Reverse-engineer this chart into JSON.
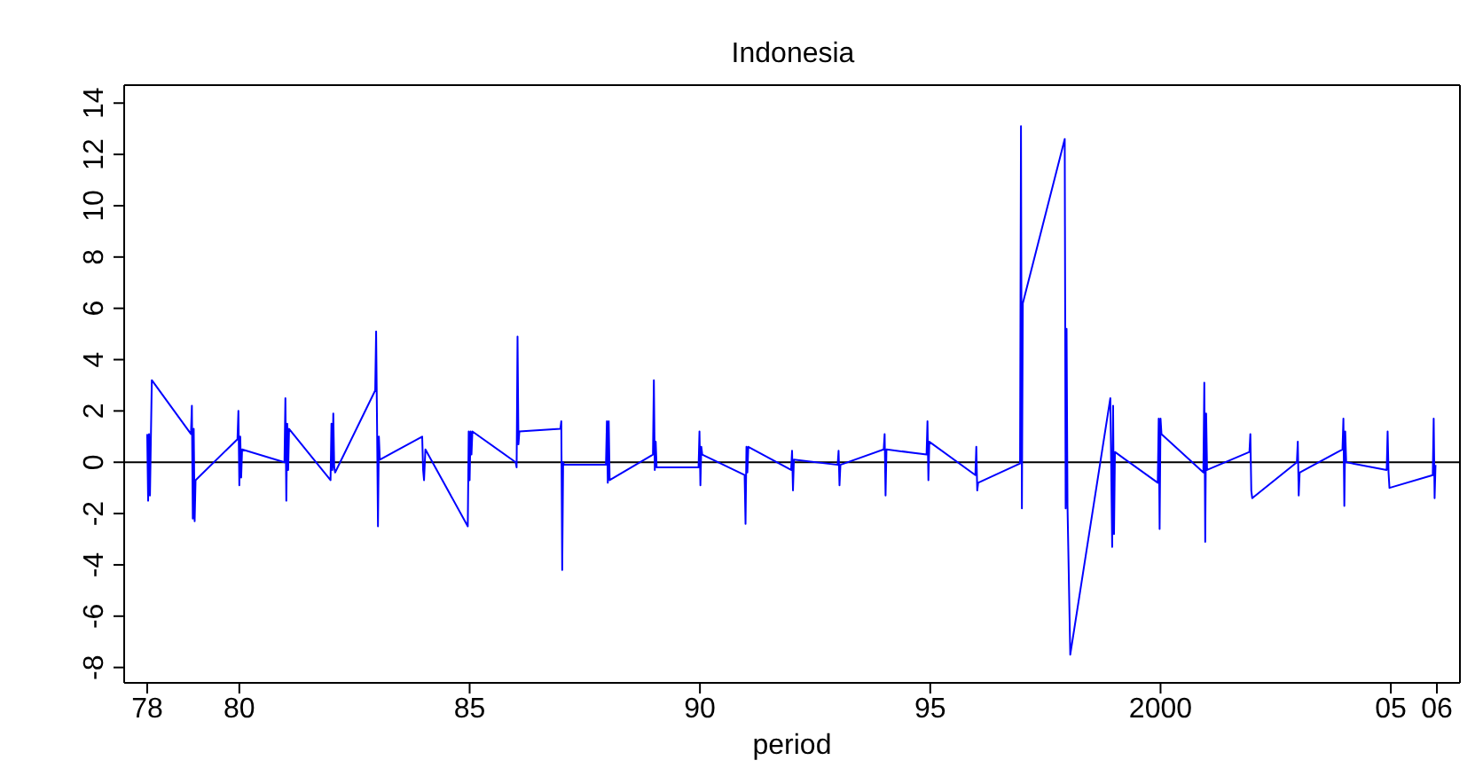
{
  "chart_data": {
    "type": "line",
    "title": "Indonesia",
    "xlabel": "period",
    "x": [
      1978.0,
      1978.02,
      1978.04,
      1978.06,
      1978.1,
      1978.95,
      1978.97,
      1978.99,
      1979.01,
      1979.03,
      1979.05,
      1979.96,
      1979.98,
      1980.0,
      1980.02,
      1980.04,
      1980.06,
      1980.98,
      1981.0,
      1981.02,
      1981.04,
      1981.06,
      1981.08,
      1981.98,
      1982.0,
      1982.02,
      1982.04,
      1982.06,
      1982.08,
      1982.95,
      1982.97,
      1982.99,
      1983.01,
      1983.03,
      1983.05,
      1983.97,
      1983.99,
      1984.01,
      1984.04,
      1984.96,
      1984.98,
      1985.0,
      1985.02,
      1985.04,
      1985.06,
      1986.0,
      1986.02,
      1986.04,
      1986.06,
      1986.08,
      1986.97,
      1986.99,
      1987.01,
      1987.03,
      1987.05,
      1987.96,
      1987.98,
      1988.0,
      1988.02,
      1988.04,
      1988.98,
      1989.0,
      1989.02,
      1989.04,
      1989.06,
      1989.97,
      1989.99,
      1990.01,
      1990.03,
      1990.05,
      1990.97,
      1990.99,
      1991.01,
      1991.03,
      1991.05,
      1991.98,
      1992.0,
      1992.02,
      1992.04,
      1992.99,
      1993.01,
      1993.03,
      1993.05,
      1993.99,
      1994.01,
      1994.03,
      1994.05,
      1994.92,
      1994.94,
      1994.96,
      1994.98,
      1995.98,
      1996.0,
      1996.02,
      1996.04,
      1996.95,
      1996.97,
      1996.99,
      1997.01,
      1997.92,
      1997.94,
      1997.96,
      1997.98,
      1998.04,
      1998.91,
      1998.93,
      1998.95,
      1998.97,
      1998.99,
      1999.01,
      1999.94,
      1999.96,
      1999.98,
      2000.0,
      2000.02,
      2000.93,
      2000.95,
      2000.97,
      2000.99,
      2001.01,
      2001.93,
      2001.95,
      2001.97,
      2001.99,
      2002.96,
      2002.98,
      2003.0,
      2003.02,
      2003.95,
      2003.97,
      2003.99,
      2004.01,
      2004.03,
      2004.91,
      2004.93,
      2004.95,
      2004.97,
      2005.91,
      2005.93,
      2005.95,
      2005.97
    ],
    "series": [
      {
        "color": "#0000ff",
        "values": [
          1.1,
          -1.5,
          1.1,
          -1.3,
          3.2,
          1.1,
          2.2,
          -2.2,
          1.3,
          -2.3,
          -0.7,
          0.9,
          2.0,
          -0.9,
          1.0,
          -0.6,
          0.5,
          0,
          2.5,
          -1.5,
          1.5,
          -0.3,
          1.3,
          -0.7,
          1.5,
          -0.3,
          1.9,
          -0.2,
          -0.4,
          2.8,
          5.1,
          1.5,
          -2.5,
          1.0,
          0.1,
          1.0,
          -0.3,
          -0.7,
          0.5,
          -2.5,
          1.2,
          -0.7,
          1.2,
          0.3,
          1.2,
          0,
          -0.2,
          4.9,
          0.7,
          1.2,
          1.3,
          1.6,
          -4.2,
          0,
          -0.1,
          -0.1,
          1.6,
          -0.8,
          1.6,
          -0.7,
          0.3,
          3.2,
          -0.3,
          0.8,
          -0.2,
          -0.2,
          1.2,
          -0.9,
          0.6,
          0.3,
          -0.5,
          -2.4,
          0.6,
          -0.4,
          0.6,
          -0.3,
          0.45,
          -1.1,
          0.1,
          -0.1,
          0.45,
          -0.9,
          -0.1,
          0.5,
          1.1,
          -1.3,
          0.5,
          0.3,
          1.6,
          -0.7,
          0.8,
          -0.5,
          0.6,
          -1.1,
          -0.8,
          -0.05,
          13.1,
          -1.8,
          6.2,
          12.6,
          -1.8,
          5.2,
          -1.7,
          -7.5,
          2.5,
          -0.3,
          -3.3,
          2.2,
          -2.8,
          0.4,
          -0.8,
          1.7,
          -2.6,
          1.7,
          1.1,
          -0.4,
          3.1,
          -3.1,
          1.9,
          -0.3,
          0.4,
          1.1,
          -1.1,
          -1.4,
          0,
          0.8,
          -1.3,
          -0.4,
          0.5,
          1.7,
          -1.7,
          1.2,
          0,
          -0.3,
          1.2,
          -0.4,
          -1.0,
          -0.5,
          1.7,
          -1.4,
          -0.1
        ]
      }
    ],
    "xlim": [
      1977.5,
      2006.5
    ],
    "xticks": [
      {
        "value": 1978,
        "label": "78"
      },
      {
        "value": 1980,
        "label": "80"
      },
      {
        "value": 1985,
        "label": "85"
      },
      {
        "value": 1990,
        "label": "90"
      },
      {
        "value": 1995,
        "label": "95"
      },
      2000,
      {
        "value": 2005,
        "label": "05"
      },
      {
        "value": 2006,
        "label": "06"
      }
    ],
    "ylim": [
      -8.6,
      14.7
    ],
    "yticks": [
      -8,
      -6,
      -4,
      -2,
      0,
      2,
      4,
      6,
      8,
      10,
      12,
      14
    ],
    "ref_lines": [
      {
        "axis": "y",
        "value": 0,
        "color": "#000000"
      }
    ],
    "marker": "none",
    "line_style": "solid",
    "grid": false,
    "legend": false
  }
}
